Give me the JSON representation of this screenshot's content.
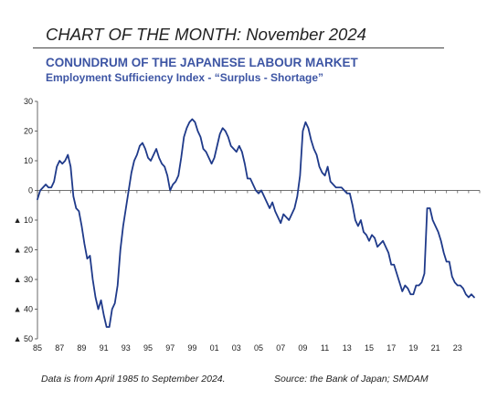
{
  "header": {
    "title": "CHART OF THE MONTH: November 2024"
  },
  "chart_data": {
    "type": "line",
    "title": "CONUNDRUM OF THE JAPANESE LABOUR MARKET",
    "subtitle": "Employment Sufficiency Index - “Surplus - Shortage”",
    "xlabel": "",
    "ylabel": "",
    "xlim": [
      1985,
      2025
    ],
    "ylim": [
      -50,
      30
    ],
    "grid": false,
    "x_tick_labels": [
      "85",
      "87",
      "89",
      "91",
      "93",
      "95",
      "97",
      "99",
      "01",
      "03",
      "05",
      "07",
      "09",
      "11",
      "13",
      "15",
      "17",
      "19",
      "21",
      "23"
    ],
    "y_ticks": [
      {
        "value": 30,
        "label": "30"
      },
      {
        "value": 20,
        "label": "20"
      },
      {
        "value": 10,
        "label": "10"
      },
      {
        "value": 0,
        "label": "0"
      },
      {
        "value": -10,
        "label": "▲ 10"
      },
      {
        "value": -20,
        "label": "▲ 20"
      },
      {
        "value": -30,
        "label": "▲ 30"
      },
      {
        "value": -40,
        "label": "▲ 40"
      },
      {
        "value": -50,
        "label": "▲ 50"
      }
    ],
    "series": [
      {
        "color": "#1f3a8a",
        "points": [
          [
            1985.0,
            -3
          ],
          [
            1985.25,
            0
          ],
          [
            1985.5,
            1
          ],
          [
            1985.75,
            2
          ],
          [
            1986.0,
            1
          ],
          [
            1986.25,
            1
          ],
          [
            1986.5,
            3
          ],
          [
            1986.75,
            8
          ],
          [
            1987.0,
            10
          ],
          [
            1987.25,
            9
          ],
          [
            1987.5,
            10
          ],
          [
            1987.75,
            12
          ],
          [
            1988.0,
            8
          ],
          [
            1988.25,
            -2
          ],
          [
            1988.5,
            -6
          ],
          [
            1988.75,
            -7
          ],
          [
            1989.0,
            -12
          ],
          [
            1989.25,
            -18
          ],
          [
            1989.5,
            -23
          ],
          [
            1989.75,
            -22
          ],
          [
            1990.0,
            -30
          ],
          [
            1990.25,
            -36
          ],
          [
            1990.5,
            -40
          ],
          [
            1990.75,
            -37
          ],
          [
            1991.0,
            -42
          ],
          [
            1991.25,
            -46
          ],
          [
            1991.5,
            -46
          ],
          [
            1991.75,
            -40
          ],
          [
            1992.0,
            -38
          ],
          [
            1992.25,
            -32
          ],
          [
            1992.5,
            -20
          ],
          [
            1992.75,
            -12
          ],
          [
            1993.0,
            -6
          ],
          [
            1993.25,
            0
          ],
          [
            1993.5,
            6
          ],
          [
            1993.75,
            10
          ],
          [
            1994.0,
            12
          ],
          [
            1994.25,
            15
          ],
          [
            1994.5,
            16
          ],
          [
            1994.75,
            14
          ],
          [
            1995.0,
            11
          ],
          [
            1995.25,
            10
          ],
          [
            1995.5,
            12
          ],
          [
            1995.75,
            14
          ],
          [
            1996.0,
            11
          ],
          [
            1996.25,
            9
          ],
          [
            1996.5,
            8
          ],
          [
            1996.75,
            5
          ],
          [
            1997.0,
            0
          ],
          [
            1997.25,
            2
          ],
          [
            1997.5,
            3
          ],
          [
            1997.75,
            5
          ],
          [
            1998.0,
            11
          ],
          [
            1998.25,
            18
          ],
          [
            1998.5,
            21
          ],
          [
            1998.75,
            23
          ],
          [
            1999.0,
            24
          ],
          [
            1999.25,
            23
          ],
          [
            1999.5,
            20
          ],
          [
            1999.75,
            18
          ],
          [
            2000.0,
            14
          ],
          [
            2000.25,
            13
          ],
          [
            2000.5,
            11
          ],
          [
            2000.75,
            9
          ],
          [
            2001.0,
            11
          ],
          [
            2001.25,
            15
          ],
          [
            2001.5,
            19
          ],
          [
            2001.75,
            21
          ],
          [
            2002.0,
            20
          ],
          [
            2002.25,
            18
          ],
          [
            2002.5,
            15
          ],
          [
            2002.75,
            14
          ],
          [
            2003.0,
            13
          ],
          [
            2003.25,
            15
          ],
          [
            2003.5,
            13
          ],
          [
            2003.75,
            9
          ],
          [
            2004.0,
            4
          ],
          [
            2004.25,
            4
          ],
          [
            2004.5,
            2
          ],
          [
            2004.75,
            0
          ],
          [
            2005.0,
            -1
          ],
          [
            2005.25,
            0
          ],
          [
            2005.5,
            -2
          ],
          [
            2005.75,
            -4
          ],
          [
            2006.0,
            -6
          ],
          [
            2006.25,
            -4
          ],
          [
            2006.5,
            -7
          ],
          [
            2006.75,
            -9
          ],
          [
            2007.0,
            -11
          ],
          [
            2007.25,
            -8
          ],
          [
            2007.5,
            -9
          ],
          [
            2007.75,
            -10
          ],
          [
            2008.0,
            -8
          ],
          [
            2008.25,
            -6
          ],
          [
            2008.5,
            -2
          ],
          [
            2008.75,
            5
          ],
          [
            2009.0,
            20
          ],
          [
            2009.25,
            23
          ],
          [
            2009.5,
            21
          ],
          [
            2009.75,
            17
          ],
          [
            2010.0,
            14
          ],
          [
            2010.25,
            12
          ],
          [
            2010.5,
            8
          ],
          [
            2010.75,
            6
          ],
          [
            2011.0,
            5
          ],
          [
            2011.25,
            8
          ],
          [
            2011.5,
            3
          ],
          [
            2011.75,
            2
          ],
          [
            2012.0,
            1
          ],
          [
            2012.25,
            1
          ],
          [
            2012.5,
            1
          ],
          [
            2012.75,
            0
          ],
          [
            2013.0,
            -1
          ],
          [
            2013.25,
            -1
          ],
          [
            2013.5,
            -5
          ],
          [
            2013.75,
            -10
          ],
          [
            2014.0,
            -12
          ],
          [
            2014.25,
            -10
          ],
          [
            2014.5,
            -14
          ],
          [
            2014.75,
            -15
          ],
          [
            2015.0,
            -17
          ],
          [
            2015.25,
            -15
          ],
          [
            2015.5,
            -16
          ],
          [
            2015.75,
            -19
          ],
          [
            2016.0,
            -18
          ],
          [
            2016.25,
            -17
          ],
          [
            2016.5,
            -19
          ],
          [
            2016.75,
            -21
          ],
          [
            2017.0,
            -25
          ],
          [
            2017.25,
            -25
          ],
          [
            2017.5,
            -28
          ],
          [
            2017.75,
            -31
          ],
          [
            2018.0,
            -34
          ],
          [
            2018.25,
            -32
          ],
          [
            2018.5,
            -33
          ],
          [
            2018.75,
            -35
          ],
          [
            2019.0,
            -35
          ],
          [
            2019.25,
            -32
          ],
          [
            2019.5,
            -32
          ],
          [
            2019.75,
            -31
          ],
          [
            2020.0,
            -28
          ],
          [
            2020.25,
            -6
          ],
          [
            2020.5,
            -6
          ],
          [
            2020.75,
            -10
          ],
          [
            2021.0,
            -12
          ],
          [
            2021.25,
            -14
          ],
          [
            2021.5,
            -17
          ],
          [
            2021.75,
            -21
          ],
          [
            2022.0,
            -24
          ],
          [
            2022.25,
            -24
          ],
          [
            2022.5,
            -29
          ],
          [
            2022.75,
            -31
          ],
          [
            2023.0,
            -32
          ],
          [
            2023.25,
            -32
          ],
          [
            2023.5,
            -33
          ],
          [
            2023.75,
            -35
          ],
          [
            2024.0,
            -36
          ],
          [
            2024.25,
            -35
          ],
          [
            2024.5,
            -36
          ]
        ]
      }
    ]
  },
  "footer": {
    "note": "Data is from April 1985 to September 2024.",
    "source": "Source: the Bank of Japan; SMDAM"
  }
}
